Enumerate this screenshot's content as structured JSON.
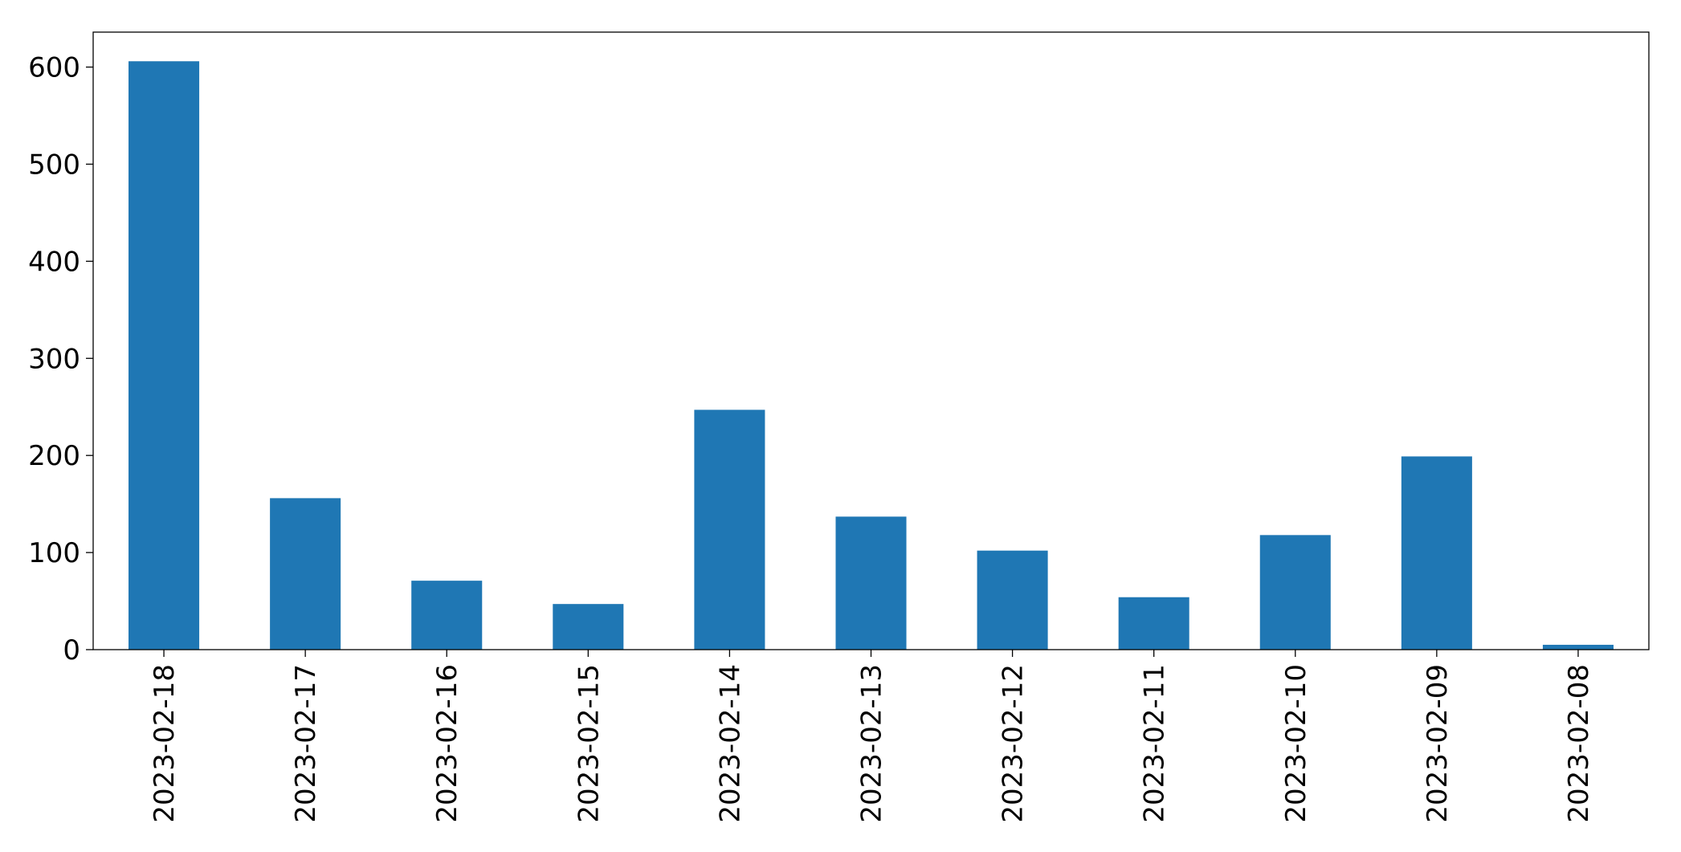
{
  "chart_data": {
    "type": "bar",
    "categories": [
      "2023-02-18",
      "2023-02-17",
      "2023-02-16",
      "2023-02-15",
      "2023-02-14",
      "2023-02-13",
      "2023-02-12",
      "2023-02-11",
      "2023-02-10",
      "2023-02-09",
      "2023-02-08"
    ],
    "values": [
      606,
      156,
      71,
      47,
      247,
      137,
      102,
      54,
      118,
      199,
      5
    ],
    "color": "#1f77b4",
    "ylim": [
      0,
      636
    ],
    "yticks": [
      0,
      100,
      200,
      300,
      400,
      500,
      600
    ],
    "grid": false
  }
}
